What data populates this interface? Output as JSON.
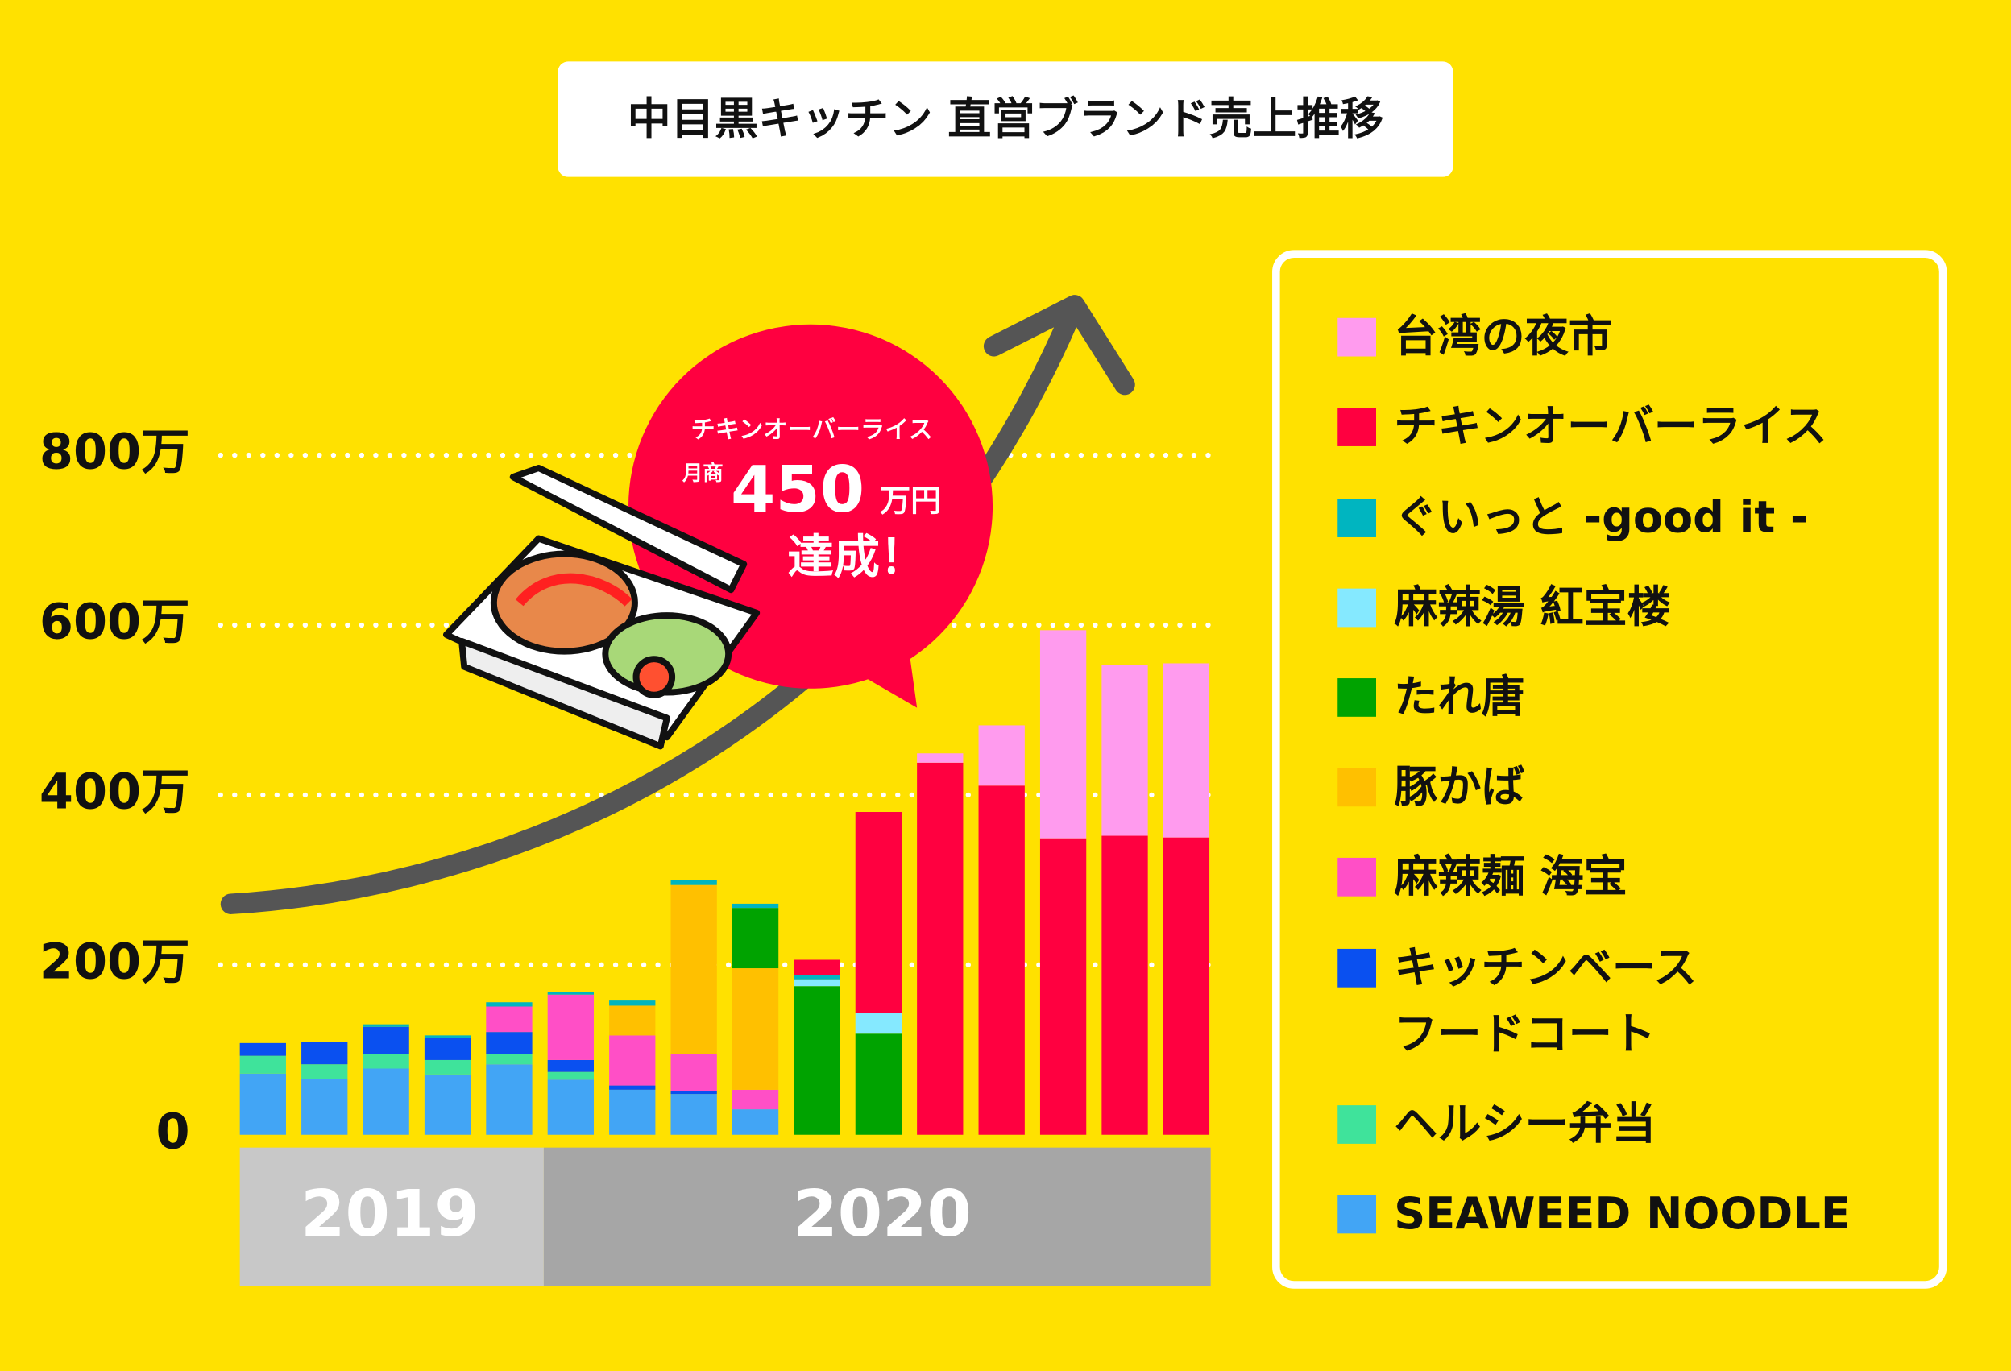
{
  "chart_data": {
    "type": "stacked_bar",
    "title": "中目黒キッチン 直営ブランド売上推移",
    "categories": [
      null,
      null,
      null,
      null,
      null,
      null,
      null,
      null,
      null,
      null,
      null,
      null,
      null,
      null,
      null,
      null
    ],
    "year_groups": [
      {
        "label": "2019",
        "span": 5
      },
      {
        "label": "2020",
        "span": 11
      }
    ],
    "ylim": [
      0,
      800
    ],
    "yticks": [
      0,
      {
        "value": 200,
        "label": "200万"
      },
      {
        "value": 400,
        "label": "400万"
      },
      {
        "value": 600,
        "label": "600万"
      },
      {
        "value": 800,
        "label": "800万"
      }
    ],
    "grid": true,
    "series": [
      {
        "name": "SEAWEED NOODLE",
        "color": "#42a5f5",
        "values": [
          72,
          66,
          78,
          71,
          83,
          65,
          53,
          48,
          30,
          null,
          null,
          null,
          null,
          null,
          null,
          null
        ]
      },
      {
        "name": "ヘルシー弁当",
        "color": "#3fe39b",
        "values": [
          21,
          17,
          17,
          17,
          12,
          9,
          null,
          null,
          null,
          null,
          null,
          null,
          null,
          null,
          null,
          null
        ]
      },
      {
        "name": "キッチンベース\nフードコート",
        "color": "#0a50f0",
        "values": [
          15,
          26,
          32,
          26,
          26,
          14,
          5,
          3,
          null,
          null,
          null,
          null,
          null,
          null,
          null,
          null
        ]
      },
      {
        "name": "麻辣麺 海宝",
        "color": "#ff4fc6",
        "values": [
          null,
          null,
          null,
          null,
          30,
          77,
          59,
          44,
          23,
          null,
          null,
          null,
          null,
          null,
          null,
          null
        ]
      },
      {
        "name": "豚かば",
        "color": "#ffc000",
        "values": [
          null,
          null,
          null,
          null,
          null,
          null,
          35,
          199,
          143,
          null,
          null,
          null,
          null,
          null,
          null,
          null
        ]
      },
      {
        "name": "たれ唐",
        "color": "#00a300",
        "values": [
          null,
          null,
          null,
          null,
          null,
          null,
          null,
          null,
          71,
          175,
          119,
          null,
          null,
          null,
          null,
          null
        ]
      },
      {
        "name": "麻辣湯 紅宝楼",
        "color": "#85e9ff",
        "values": [
          null,
          null,
          null,
          null,
          null,
          null,
          null,
          null,
          null,
          8,
          24,
          null,
          null,
          null,
          null,
          null
        ]
      },
      {
        "name": "ぐいっと -good it -",
        "color": "#00b5c0",
        "values": [
          null,
          null,
          3,
          3,
          5,
          3,
          6,
          6,
          5,
          5,
          null,
          null,
          null,
          null,
          null,
          null
        ]
      },
      {
        "name": "チキンオーバーライス",
        "color": "#ff0040",
        "values": [
          null,
          null,
          null,
          null,
          null,
          null,
          null,
          null,
          null,
          18,
          237,
          438,
          411,
          349,
          352,
          350
        ]
      },
      {
        "name": "台湾の夜市",
        "color": "#ff9bee",
        "values": [
          null,
          null,
          null,
          null,
          null,
          null,
          null,
          null,
          null,
          null,
          null,
          11,
          71,
          245,
          201,
          205
        ]
      }
    ],
    "annotation": {
      "brand": "チキンオーバーライス",
      "prefix": "月商",
      "amount": "450",
      "unit": "万円",
      "text": "達成！"
    }
  }
}
